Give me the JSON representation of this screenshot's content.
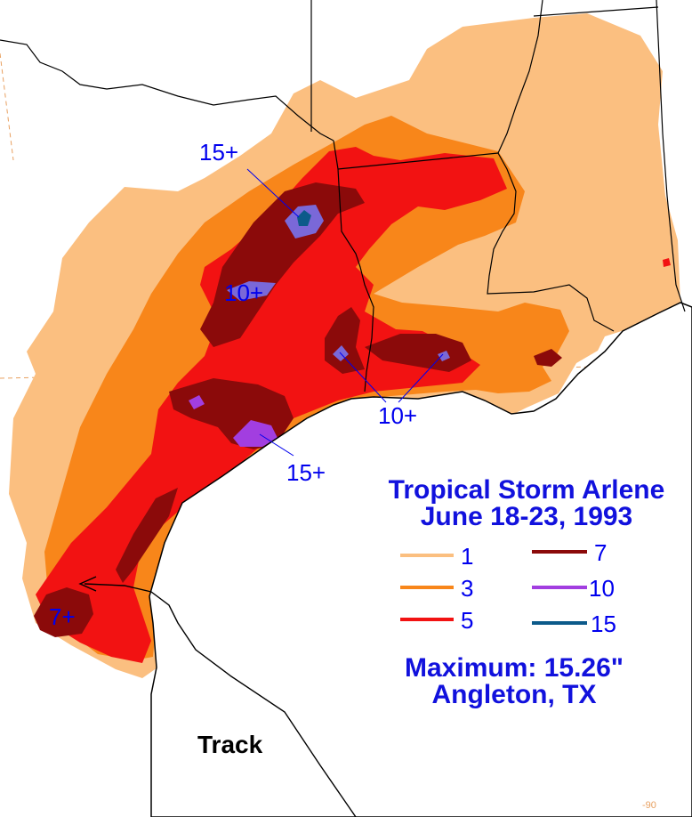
{
  "title": "Tropical Storm Arlene",
  "dates": "June 18-23, 1993",
  "legend": [
    {
      "value": "1",
      "color": "#fbbf80"
    },
    {
      "value": "3",
      "color": "#f8861a"
    },
    {
      "value": "5",
      "color": "#f21212"
    },
    {
      "value": "7",
      "color": "#8b0a0a"
    },
    {
      "value": "10",
      "color": "#a23ee0"
    },
    {
      "value": "15",
      "color": "#0c5a8a"
    }
  ],
  "maximum": "Maximum:  15.26\"",
  "maximum_location": "Angleton, TX",
  "annotations": [
    "15+",
    "10+",
    "10+",
    "15+",
    "7+"
  ],
  "track_label": "Track",
  "longitude_label": "-90"
}
